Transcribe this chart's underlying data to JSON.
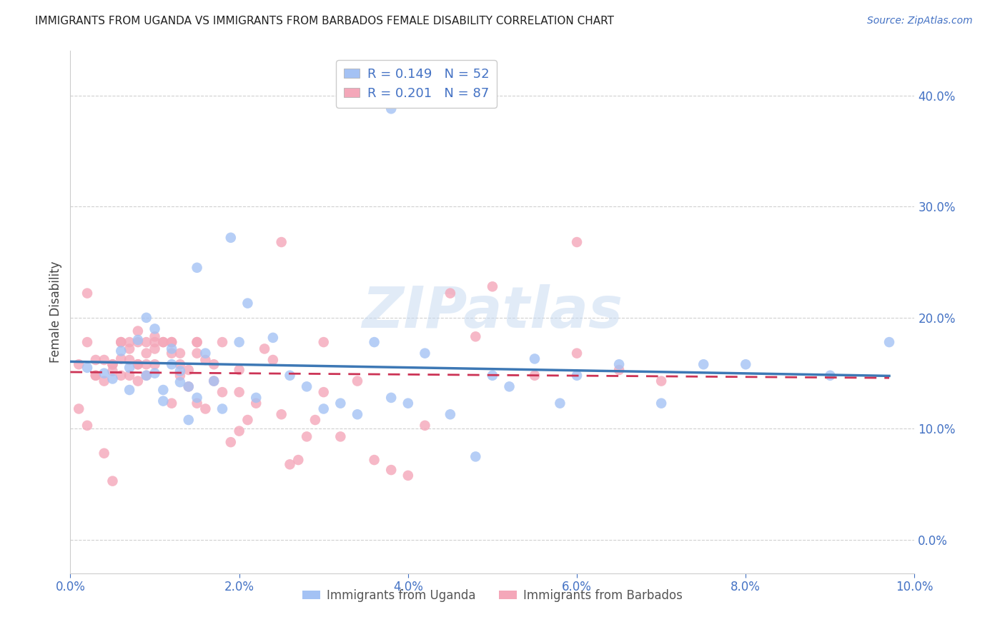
{
  "title": "IMMIGRANTS FROM UGANDA VS IMMIGRANTS FROM BARBADOS FEMALE DISABILITY CORRELATION CHART",
  "source": "Source: ZipAtlas.com",
  "ylabel": "Female Disability",
  "xlim": [
    0.0,
    0.1
  ],
  "ylim": [
    -0.03,
    0.44
  ],
  "yticks": [
    0.0,
    0.1,
    0.2,
    0.3,
    0.4
  ],
  "xticks": [
    0.0,
    0.02,
    0.04,
    0.06,
    0.08,
    0.1
  ],
  "uganda_color": "#a4c2f4",
  "barbados_color": "#f4a7b9",
  "uganda_line_color": "#3d78b5",
  "barbados_line_color": "#cc3355",
  "uganda_R": 0.149,
  "uganda_N": 52,
  "barbados_R": 0.201,
  "barbados_N": 87,
  "uganda_scatter_x": [
    0.002,
    0.004,
    0.005,
    0.006,
    0.007,
    0.007,
    0.008,
    0.009,
    0.009,
    0.01,
    0.01,
    0.011,
    0.011,
    0.012,
    0.012,
    0.013,
    0.013,
    0.014,
    0.014,
    0.015,
    0.015,
    0.016,
    0.017,
    0.018,
    0.019,
    0.02,
    0.021,
    0.022,
    0.024,
    0.026,
    0.028,
    0.03,
    0.032,
    0.034,
    0.036,
    0.038,
    0.04,
    0.042,
    0.045,
    0.048,
    0.05,
    0.052,
    0.038,
    0.055,
    0.058,
    0.06,
    0.065,
    0.07,
    0.075,
    0.08,
    0.09,
    0.097
  ],
  "uganda_scatter_y": [
    0.155,
    0.15,
    0.145,
    0.17,
    0.155,
    0.135,
    0.18,
    0.148,
    0.2,
    0.19,
    0.15,
    0.125,
    0.135,
    0.158,
    0.172,
    0.152,
    0.142,
    0.138,
    0.108,
    0.128,
    0.245,
    0.168,
    0.143,
    0.118,
    0.272,
    0.178,
    0.213,
    0.128,
    0.182,
    0.148,
    0.138,
    0.118,
    0.123,
    0.113,
    0.178,
    0.128,
    0.123,
    0.168,
    0.113,
    0.075,
    0.148,
    0.138,
    0.388,
    0.163,
    0.123,
    0.148,
    0.158,
    0.123,
    0.158,
    0.158,
    0.148,
    0.178
  ],
  "barbados_scatter_x": [
    0.001,
    0.002,
    0.002,
    0.003,
    0.003,
    0.004,
    0.004,
    0.005,
    0.005,
    0.005,
    0.006,
    0.006,
    0.006,
    0.007,
    0.007,
    0.007,
    0.007,
    0.008,
    0.008,
    0.008,
    0.009,
    0.009,
    0.009,
    0.01,
    0.01,
    0.01,
    0.011,
    0.011,
    0.012,
    0.012,
    0.012,
    0.013,
    0.013,
    0.013,
    0.014,
    0.014,
    0.015,
    0.015,
    0.015,
    0.016,
    0.016,
    0.017,
    0.017,
    0.018,
    0.018,
    0.019,
    0.02,
    0.02,
    0.021,
    0.022,
    0.023,
    0.024,
    0.025,
    0.026,
    0.027,
    0.028,
    0.029,
    0.03,
    0.032,
    0.034,
    0.036,
    0.038,
    0.04,
    0.042,
    0.045,
    0.048,
    0.05,
    0.055,
    0.06,
    0.065,
    0.001,
    0.002,
    0.003,
    0.004,
    0.005,
    0.006,
    0.008,
    0.01,
    0.012,
    0.015,
    0.02,
    0.025,
    0.03,
    0.06,
    0.07,
    0.008,
    0.009
  ],
  "barbados_scatter_y": [
    0.158,
    0.222,
    0.178,
    0.148,
    0.162,
    0.143,
    0.162,
    0.152,
    0.158,
    0.158,
    0.178,
    0.178,
    0.148,
    0.178,
    0.162,
    0.148,
    0.172,
    0.158,
    0.143,
    0.188,
    0.168,
    0.178,
    0.148,
    0.178,
    0.172,
    0.158,
    0.178,
    0.178,
    0.178,
    0.123,
    0.168,
    0.168,
    0.158,
    0.148,
    0.153,
    0.138,
    0.178,
    0.123,
    0.178,
    0.118,
    0.162,
    0.143,
    0.158,
    0.178,
    0.133,
    0.088,
    0.133,
    0.098,
    0.108,
    0.123,
    0.172,
    0.162,
    0.113,
    0.068,
    0.072,
    0.093,
    0.108,
    0.133,
    0.093,
    0.143,
    0.072,
    0.063,
    0.058,
    0.103,
    0.222,
    0.183,
    0.228,
    0.148,
    0.168,
    0.153,
    0.118,
    0.103,
    0.148,
    0.078,
    0.053,
    0.163,
    0.178,
    0.183,
    0.178,
    0.168,
    0.153,
    0.268,
    0.178,
    0.268,
    0.143,
    0.158,
    0.158
  ],
  "watermark_text": "ZIPatlas",
  "background_color": "#ffffff",
  "axis_label_color": "#4472c4",
  "title_color": "#222222",
  "grid_color": "#d0d0d0"
}
